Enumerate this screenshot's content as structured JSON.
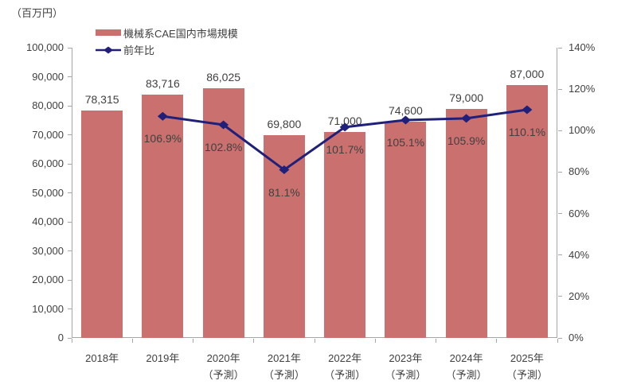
{
  "chart_data": {
    "type": "bar",
    "combo": "bar+line",
    "title": "",
    "unit_label": "（百万円）",
    "categories": [
      "2018年",
      "2019年",
      "2020年",
      "2021年",
      "2022年",
      "2023年",
      "2024年",
      "2025年"
    ],
    "category_sublabels": [
      "",
      "",
      "（予測）",
      "（予測）",
      "（予測）",
      "（予測）",
      "（予測）",
      "（予測）"
    ],
    "series": [
      {
        "name": "機械系CAE国内市場規模",
        "type": "bar",
        "axis": "left",
        "color": "#CA716F",
        "values": [
          78315,
          83716,
          86025,
          69800,
          71000,
          74600,
          79000,
          87000
        ],
        "labels": [
          "78,315",
          "83,716",
          "86,025",
          "69,800",
          "71,000",
          "74,600",
          "79,000",
          "87,000"
        ]
      },
      {
        "name": "前年比",
        "type": "line",
        "axis": "right",
        "color": "#20207B",
        "values": [
          null,
          106.9,
          102.8,
          81.1,
          101.7,
          105.1,
          105.9,
          110.1
        ],
        "labels": [
          "",
          "106.9%",
          "102.8%",
          "81.1%",
          "101.7%",
          "105.1%",
          "105.9%",
          "110.1%"
        ]
      }
    ],
    "left_axis": {
      "min": 0,
      "max": 100000,
      "step": 10000,
      "tick_labels": [
        "0",
        "10,000",
        "20,000",
        "30,000",
        "40,000",
        "50,000",
        "60,000",
        "70,000",
        "80,000",
        "90,000",
        "100,000"
      ]
    },
    "right_axis": {
      "min": 0,
      "max": 140,
      "step": 20,
      "tick_labels": [
        "0%",
        "20%",
        "40%",
        "60%",
        "80%",
        "100%",
        "120%",
        "140%"
      ]
    },
    "legend": {
      "position": "top-left",
      "entries": [
        "機械系CAE国内市場規模",
        "前年比"
      ]
    },
    "grid": false
  },
  "colors": {
    "bar": "#CA716F",
    "line": "#20207B",
    "axis": "#A6A6A6",
    "text": "#3F3F3F",
    "background": "#FFFFFF"
  }
}
